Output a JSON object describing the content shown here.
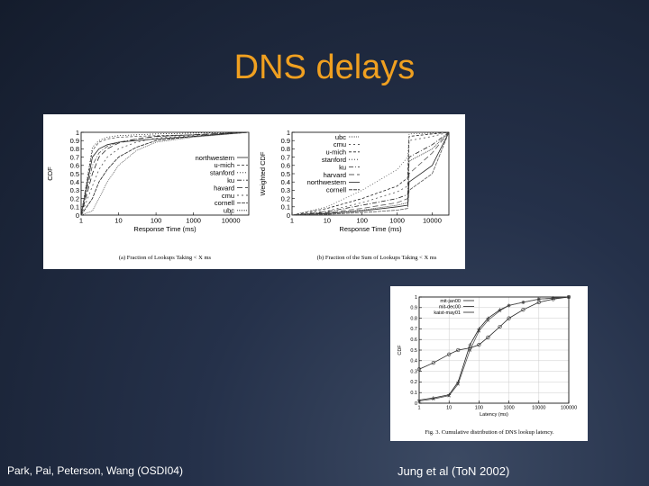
{
  "slide": {
    "title": "DNS delays",
    "citation_left": "Park, Pai, Peterson, Wang (OSDI04)",
    "citation_right": "Jung et al (ToN 2002)",
    "title_color": "#f0a020"
  },
  "chart_data": [
    {
      "type": "line",
      "panel": "a",
      "caption": "(a) Fraction of Lookups Taking < X ms",
      "xlabel": "Response Time (ms)",
      "ylabel": "CDF",
      "xscale": "log",
      "xlim": [
        1,
        30000
      ],
      "ylim": [
        0,
        1
      ],
      "xticks": [
        "1",
        "10",
        "100",
        "1000",
        "10000"
      ],
      "yticks": [
        "0",
        "0.1",
        "0.2",
        "0.3",
        "0.4",
        "0.5",
        "0.6",
        "0.7",
        "0.8",
        "0.9",
        "1"
      ],
      "legend_position": "right",
      "series": [
        {
          "name": "northwestern",
          "dash": "",
          "x": [
            1,
            2,
            3,
            5,
            10,
            30,
            100,
            1000,
            30000
          ],
          "y": [
            0,
            0.7,
            0.8,
            0.85,
            0.88,
            0.9,
            0.92,
            0.95,
            1
          ]
        },
        {
          "name": "u-mich",
          "dash": "3,2",
          "x": [
            1,
            2,
            3,
            5,
            10,
            30,
            100,
            1000,
            30000
          ],
          "y": [
            0,
            0.78,
            0.88,
            0.92,
            0.94,
            0.95,
            0.96,
            0.97,
            1
          ]
        },
        {
          "name": "stanford",
          "dash": "1,2",
          "x": [
            1,
            2,
            3,
            5,
            10,
            30,
            100,
            1000,
            30000
          ],
          "y": [
            0,
            0.82,
            0.9,
            0.94,
            0.96,
            0.97,
            0.98,
            0.99,
            1
          ]
        },
        {
          "name": "ku",
          "dash": "5,2,1,2",
          "x": [
            1,
            2,
            3,
            5,
            10,
            30,
            100,
            1000,
            30000
          ],
          "y": [
            0,
            0.6,
            0.75,
            0.83,
            0.88,
            0.92,
            0.95,
            0.97,
            1
          ]
        },
        {
          "name": "havard",
          "dash": "6,3",
          "x": [
            1,
            2,
            3,
            5,
            10,
            30,
            100,
            1000,
            30000
          ],
          "y": [
            0,
            0.5,
            0.7,
            0.8,
            0.87,
            0.92,
            0.95,
            0.97,
            1
          ]
        },
        {
          "name": "cmu",
          "dash": "2,3",
          "x": [
            1,
            2,
            3,
            5,
            10,
            30,
            100,
            1000,
            30000
          ],
          "y": [
            0,
            0.35,
            0.55,
            0.7,
            0.8,
            0.88,
            0.93,
            0.96,
            1
          ]
        },
        {
          "name": "cornell",
          "dash": "4,1",
          "x": [
            1,
            2,
            3,
            5,
            10,
            30,
            100,
            1000,
            30000
          ],
          "y": [
            0,
            0.2,
            0.4,
            0.55,
            0.7,
            0.82,
            0.9,
            0.95,
            1
          ]
        },
        {
          "name": "ubc",
          "dash": "1,1",
          "x": [
            1,
            2,
            3,
            5,
            10,
            30,
            100,
            1000,
            30000
          ],
          "y": [
            0,
            0.05,
            0.2,
            0.4,
            0.6,
            0.78,
            0.88,
            0.94,
            1
          ]
        }
      ]
    },
    {
      "type": "line",
      "panel": "b",
      "caption": "(b) Fraction of the Sum of Lookups Taking < X ms",
      "xlabel": "Response Time (ms)",
      "ylabel": "Weighted CDF",
      "xscale": "log",
      "xlim": [
        1,
        30000
      ],
      "ylim": [
        0,
        1
      ],
      "xticks": [
        "1",
        "10",
        "100",
        "1000",
        "10000"
      ],
      "yticks": [
        "0",
        "0.1",
        "0.2",
        "0.3",
        "0.4",
        "0.5",
        "0.6",
        "0.7",
        "0.8",
        "0.9",
        "1"
      ],
      "legend_position": "top-right",
      "series": [
        {
          "name": "ubc",
          "dash": "1,1",
          "x": [
            1,
            10,
            100,
            1000,
            2000,
            2200,
            10000,
            30000
          ],
          "y": [
            0,
            0.02,
            0.06,
            0.12,
            0.15,
            0.65,
            0.8,
            1
          ]
        },
        {
          "name": "cmu",
          "dash": "2,3",
          "x": [
            1,
            10,
            100,
            1000,
            2000,
            2200,
            10000,
            30000
          ],
          "y": [
            0,
            0.05,
            0.15,
            0.28,
            0.35,
            0.9,
            0.95,
            1
          ]
        },
        {
          "name": "u-mich",
          "dash": "3,2",
          "x": [
            1,
            10,
            100,
            1000,
            2000,
            2200,
            10000,
            30000
          ],
          "y": [
            0,
            0.08,
            0.2,
            0.35,
            0.45,
            0.95,
            0.98,
            1
          ]
        },
        {
          "name": "stanford",
          "dash": "1,2",
          "x": [
            1,
            10,
            100,
            1000,
            2000,
            2200,
            10000,
            30000
          ],
          "y": [
            0,
            0.1,
            0.3,
            0.55,
            0.7,
            0.98,
            0.99,
            1
          ]
        },
        {
          "name": "ku",
          "dash": "5,2,1,2",
          "x": [
            1,
            10,
            100,
            1000,
            2000,
            2200,
            10000,
            30000
          ],
          "y": [
            0,
            0.04,
            0.12,
            0.2,
            0.25,
            0.7,
            0.85,
            1
          ]
        },
        {
          "name": "harvard",
          "dash": "6,3",
          "x": [
            1,
            10,
            100,
            1000,
            2000,
            2200,
            10000,
            30000
          ],
          "y": [
            0,
            0.03,
            0.08,
            0.15,
            0.2,
            0.5,
            0.75,
            1
          ]
        },
        {
          "name": "northwestern",
          "dash": "",
          "x": [
            1,
            10,
            100,
            1000,
            2000,
            2200,
            10000,
            30000
          ],
          "y": [
            0,
            0.02,
            0.05,
            0.1,
            0.12,
            0.4,
            0.6,
            1
          ]
        },
        {
          "name": "cornell",
          "dash": "4,1",
          "x": [
            1,
            10,
            100,
            1000,
            2000,
            2200,
            10000,
            30000
          ],
          "y": [
            0,
            0.01,
            0.03,
            0.06,
            0.08,
            0.3,
            0.5,
            1
          ]
        }
      ]
    },
    {
      "type": "line",
      "panel": "jung",
      "caption": "Fig. 3.  Cumulative distribution of DNS lookup latency.",
      "xlabel": "Latency (ms)",
      "ylabel": "CDF",
      "xscale": "log",
      "xlim": [
        1,
        100000
      ],
      "ylim": [
        0,
        1
      ],
      "xticks": [
        "1",
        "10",
        "100",
        "1000",
        "10000",
        "100000"
      ],
      "yticks": [
        "0",
        "0.1",
        "0.2",
        "0.3",
        "0.4",
        "0.5",
        "0.6",
        "0.7",
        "0.8",
        "0.9",
        "1"
      ],
      "grid": true,
      "legend_position": "top-right",
      "series": [
        {
          "name": "mit-jan00",
          "marker": "+",
          "x": [
            1,
            3,
            10,
            20,
            50,
            100,
            200,
            500,
            1000,
            3000,
            10000,
            30000,
            100000
          ],
          "y": [
            0.03,
            0.05,
            0.08,
            0.2,
            0.55,
            0.7,
            0.8,
            0.88,
            0.92,
            0.95,
            0.98,
            0.99,
            1
          ]
        },
        {
          "name": "mit-dec00",
          "marker": "x",
          "x": [
            1,
            3,
            10,
            20,
            50,
            100,
            200,
            500,
            1000,
            3000,
            10000,
            30000,
            100000
          ],
          "y": [
            0.02,
            0.04,
            0.07,
            0.18,
            0.5,
            0.68,
            0.78,
            0.87,
            0.92,
            0.95,
            0.98,
            0.99,
            1
          ]
        },
        {
          "name": "kaist-may01",
          "marker": "o",
          "x": [
            1,
            3,
            10,
            20,
            50,
            100,
            200,
            500,
            1000,
            3000,
            10000,
            30000,
            100000
          ],
          "y": [
            0.32,
            0.38,
            0.46,
            0.5,
            0.52,
            0.55,
            0.62,
            0.72,
            0.8,
            0.88,
            0.95,
            0.98,
            1
          ]
        }
      ]
    }
  ]
}
